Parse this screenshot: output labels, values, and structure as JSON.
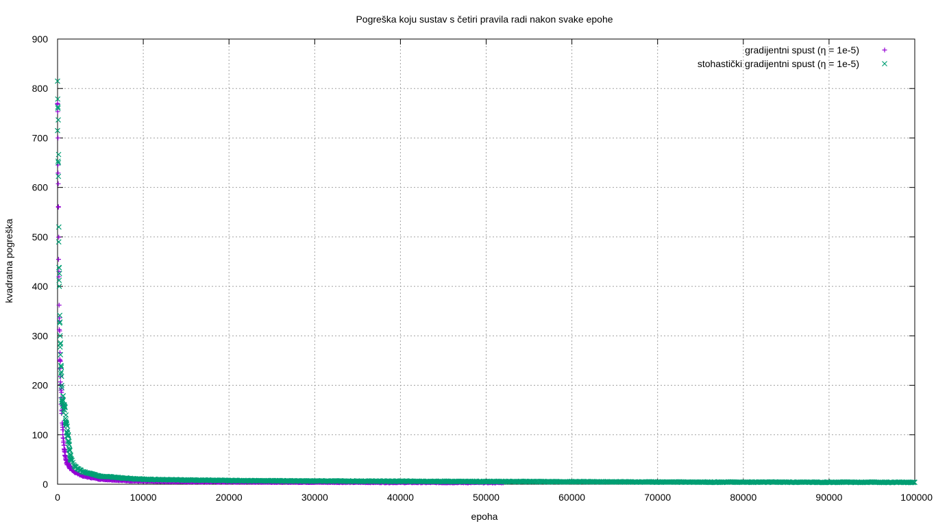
{
  "chart_data": {
    "type": "scatter",
    "title": "Pogreška koju sustav s četiri pravila radi nakon svake epohe",
    "xlabel": "epoha",
    "ylabel": "kvadratna pogreška",
    "xlim": [
      0,
      100000
    ],
    "ylim": [
      0,
      900
    ],
    "x_ticks": [
      "0",
      "10000",
      "20000",
      "30000",
      "40000",
      "50000",
      "60000",
      "70000",
      "80000",
      "90000",
      "100000"
    ],
    "y_ticks": [
      "0",
      "100",
      "200",
      "300",
      "400",
      "500",
      "600",
      "700",
      "800",
      "900"
    ],
    "grid": true,
    "legend_position": "top-right",
    "series": [
      {
        "name": "gradijentni spust (η = 1e-5)",
        "marker": "+",
        "color": "#9400d3",
        "x": [
          0,
          50,
          100,
          150,
          200,
          300,
          400,
          500,
          600,
          800,
          1000,
          1500,
          2000,
          3000,
          5000,
          7500,
          10000,
          15000,
          20000,
          30000,
          40000,
          52000
        ],
        "y": [
          770,
          700,
          560,
          430,
          330,
          250,
          190,
          150,
          110,
          70,
          48,
          32,
          24,
          16,
          10,
          7.5,
          6,
          5,
          4.5,
          4,
          3.5,
          3.2
        ]
      },
      {
        "name": "stohastički gradijentni spust (η = 1e-5)",
        "marker": "x",
        "color": "#009e73",
        "x": [
          0,
          50,
          100,
          150,
          200,
          300,
          400,
          500,
          600,
          800,
          1000,
          1500,
          2000,
          3000,
          5000,
          7500,
          10000,
          15000,
          20000,
          30000,
          40000,
          50000,
          60000,
          70000,
          80000,
          90000,
          100000
        ],
        "y": [
          815,
          760,
          650,
          520,
          400,
          300,
          240,
          195,
          170,
          150,
          125,
          55,
          35,
          25,
          16,
          13,
          10,
          8.5,
          7.5,
          6.5,
          6,
          5.5,
          5,
          4.5,
          4.2,
          4,
          3.8
        ]
      }
    ]
  }
}
